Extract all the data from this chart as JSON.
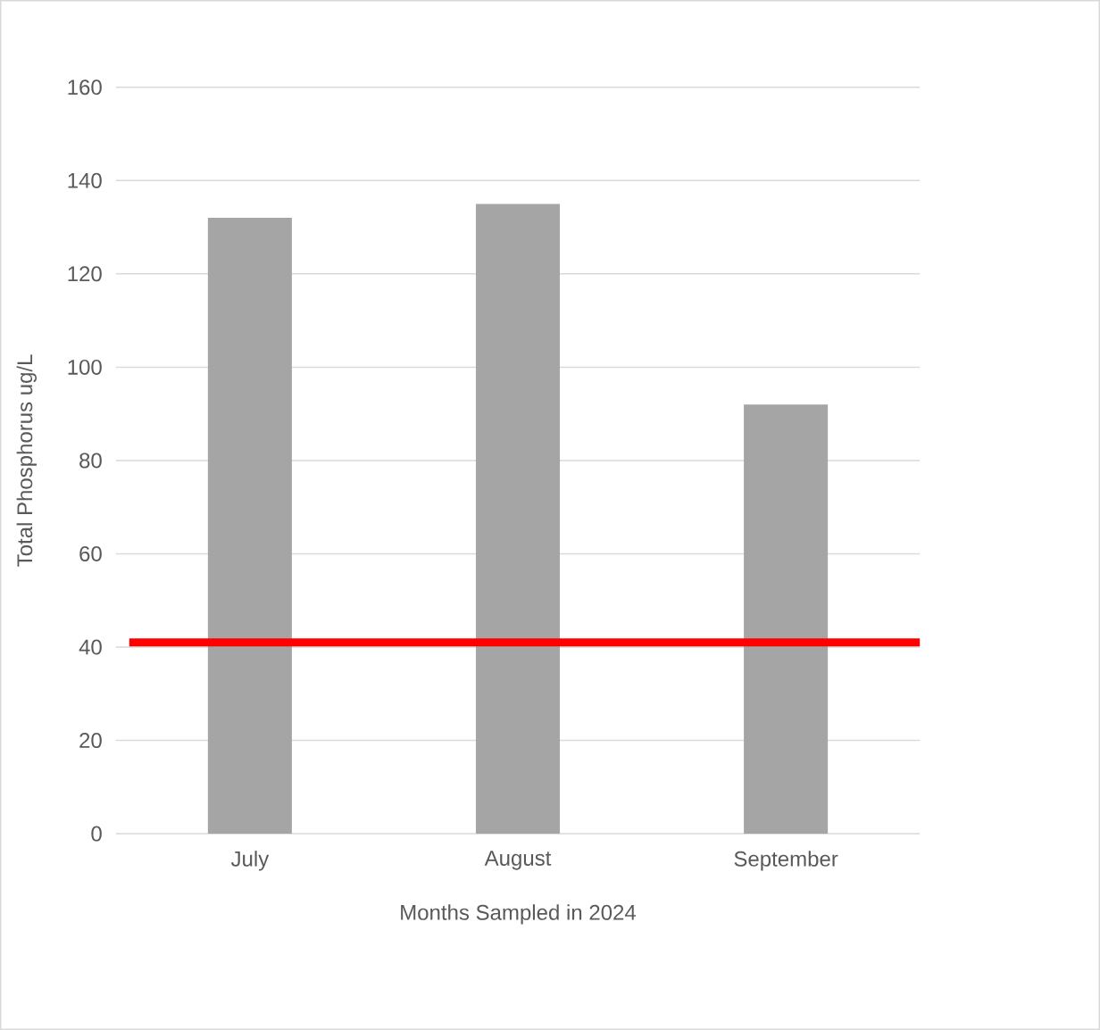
{
  "chart_data": {
    "type": "bar",
    "categories": [
      "July",
      "August",
      "September"
    ],
    "values": [
      132,
      135,
      92
    ],
    "color": "#a5a5a5",
    "xlabel": "Months Sampled in 2024",
    "ylabel": "Total Phosphorus ug/L",
    "ylim": [
      0,
      160
    ],
    "yticks": [
      0,
      20,
      40,
      60,
      80,
      100,
      120,
      140,
      160
    ],
    "grid": "y",
    "ref_lines": [
      {
        "axis": "y",
        "value": 41,
        "color": "#ff0000"
      }
    ]
  }
}
